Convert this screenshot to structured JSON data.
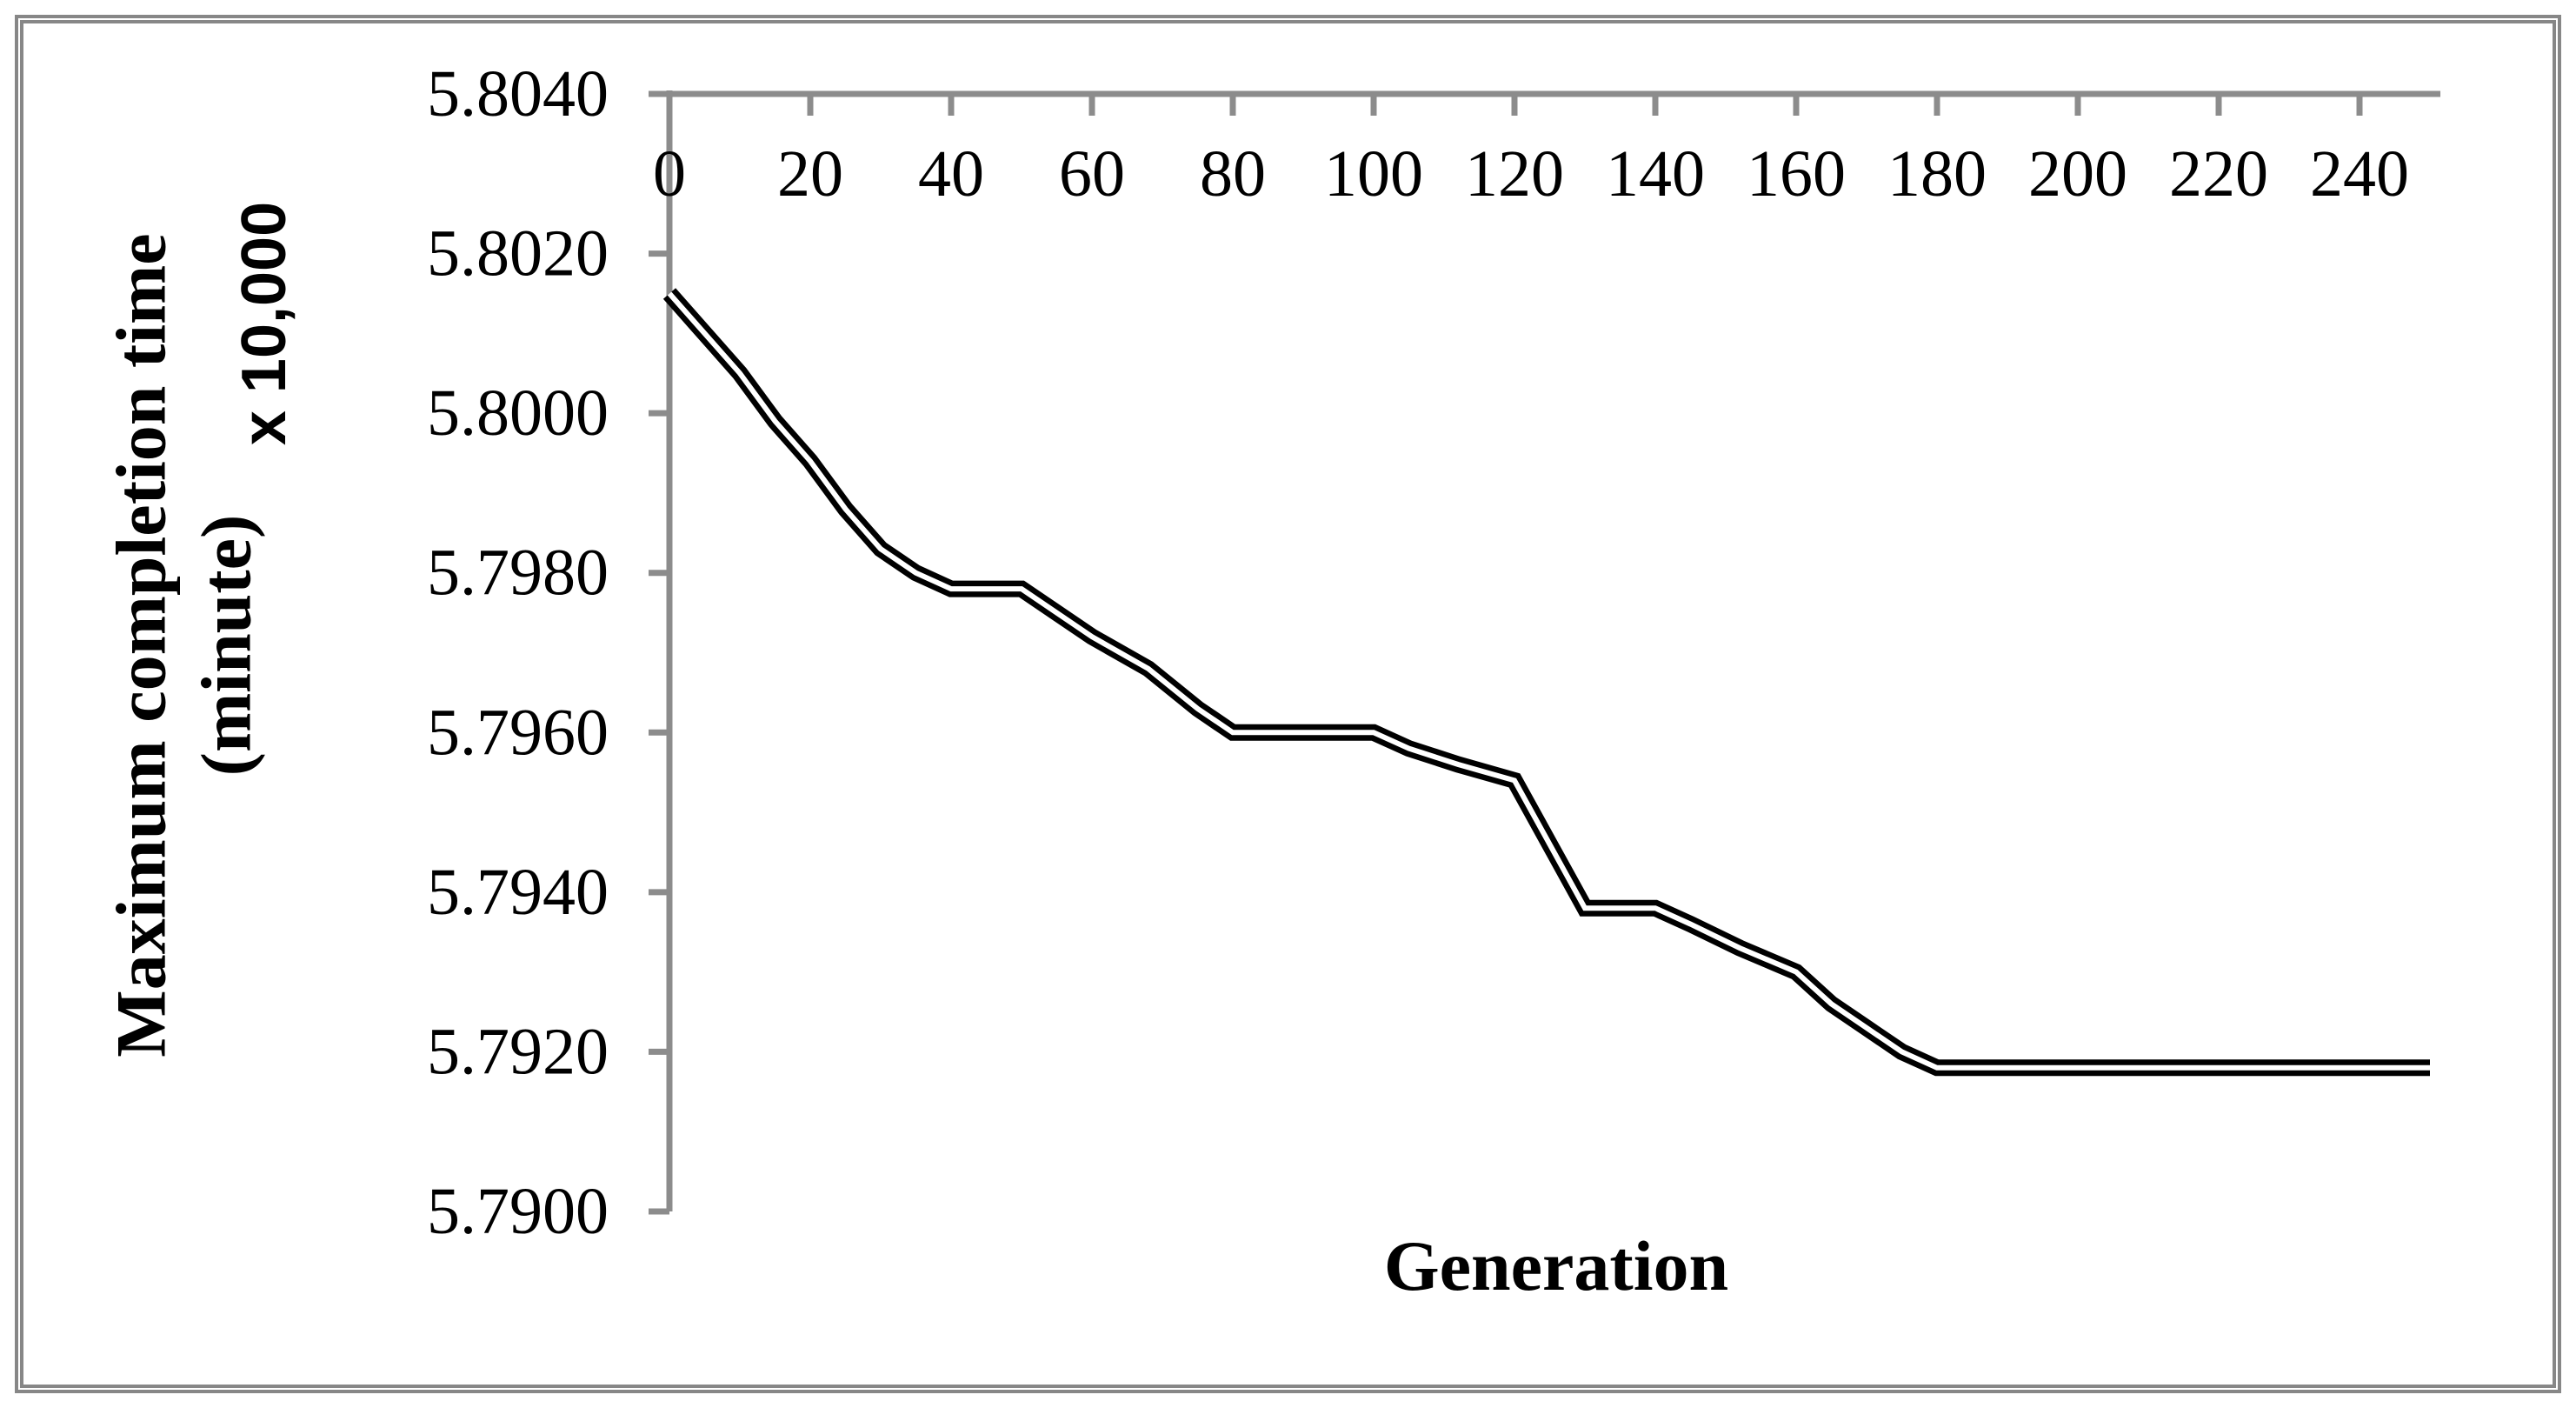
{
  "colors": {
    "background": "#ffffff",
    "figure_border": "#878787",
    "axis": "#8c8c8c",
    "series_line": "#000000",
    "text": "#000000"
  },
  "chart_data": {
    "type": "line",
    "title": "",
    "xlabel": "Generation",
    "ylabel_lines": [
      "Maximum completion time",
      "(minute)"
    ],
    "ylabel_scale_note": "x 10,000",
    "x_ticks": [
      0,
      20,
      40,
      60,
      80,
      100,
      120,
      140,
      160,
      180,
      200,
      220,
      240
    ],
    "y_tick_labels": [
      "5.8040",
      "5.8020",
      "5.8000",
      "5.7980",
      "5.7960",
      "5.7940",
      "5.7920",
      "5.7900"
    ],
    "xlim": [
      0,
      250
    ],
    "ylim": [
      5.79,
      5.804
    ],
    "x_axis_position": "top",
    "grid": false,
    "legend": "none",
    "series": [
      {
        "name": "maximum-completion-time",
        "style": "double-line-black",
        "points": [
          [
            0,
            5.8015
          ],
          [
            5,
            5.801
          ],
          [
            10,
            5.8005
          ],
          [
            15,
            5.7999
          ],
          [
            20,
            5.7994
          ],
          [
            25,
            5.7988
          ],
          [
            30,
            5.7983
          ],
          [
            35,
            5.798
          ],
          [
            40,
            5.7978
          ],
          [
            50,
            5.7978
          ],
          [
            55,
            5.7975
          ],
          [
            60,
            5.7972
          ],
          [
            68,
            5.7968
          ],
          [
            75,
            5.7963
          ],
          [
            80,
            5.796
          ],
          [
            100,
            5.796
          ],
          [
            105,
            5.7958
          ],
          [
            112,
            5.7956
          ],
          [
            120,
            5.7954
          ],
          [
            125,
            5.7946
          ],
          [
            130,
            5.7938
          ],
          [
            140,
            5.7938
          ],
          [
            145,
            5.7936
          ],
          [
            152,
            5.7933
          ],
          [
            160,
            5.793
          ],
          [
            165,
            5.7926
          ],
          [
            170,
            5.7923
          ],
          [
            175,
            5.792
          ],
          [
            180,
            5.7918
          ],
          [
            250,
            5.7918
          ]
        ]
      }
    ]
  }
}
